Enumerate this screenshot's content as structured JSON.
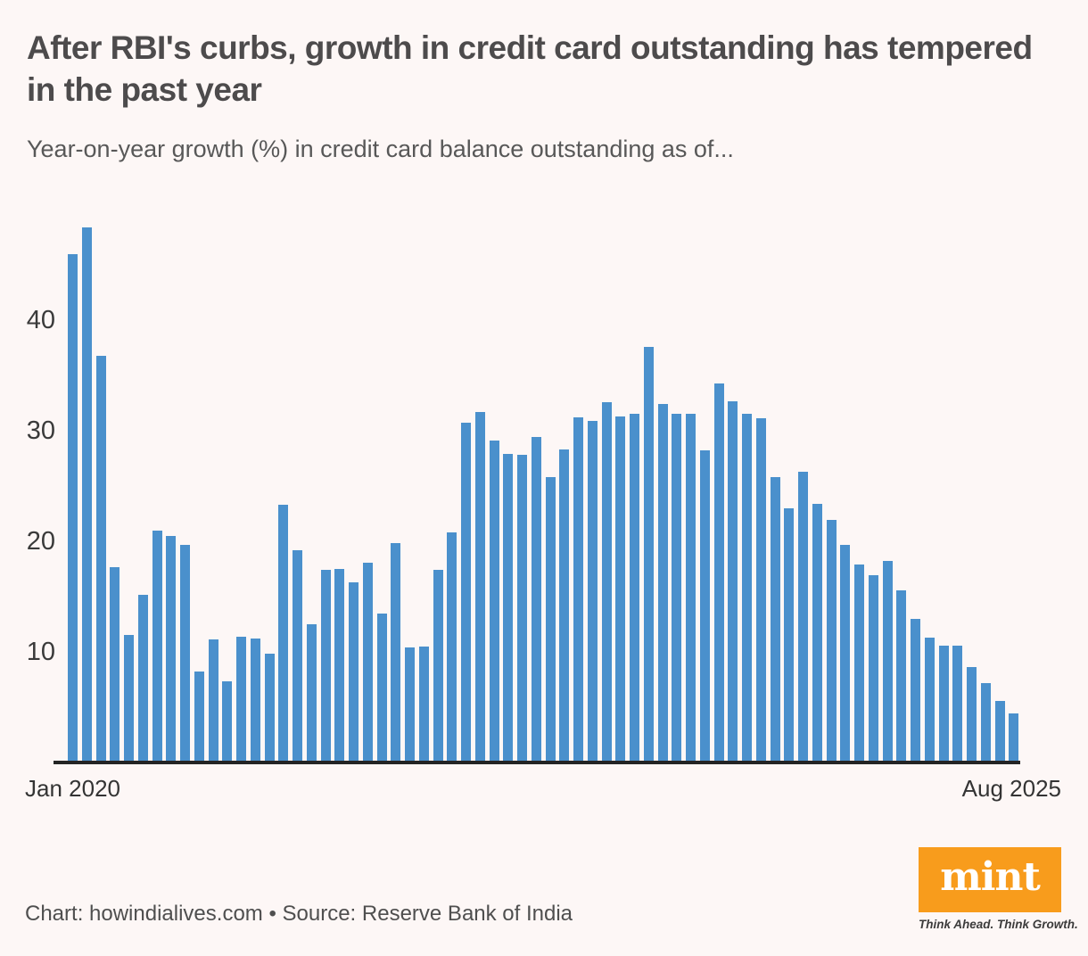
{
  "header": {
    "title": "After RBI's curbs, growth in credit card outstanding has tempered in the past year",
    "subtitle": "Year-on-year growth (%) in credit card balance outstanding as of..."
  },
  "chart_data": {
    "type": "bar",
    "title": "After RBI's curbs, growth in credit card outstanding has tempered in the past year",
    "subtitle": "Year-on-year growth (%) in credit card balance outstanding as of...",
    "unit": "percent, year-on-year growth",
    "x": [
      "Jan 2020",
      "Feb 2020",
      "Mar 2020",
      "Apr 2020",
      "May 2020",
      "Jun 2020",
      "Jul 2020",
      "Aug 2020",
      "Sep 2020",
      "Oct 2020",
      "Nov 2020",
      "Dec 2020",
      "Jan 2021",
      "Feb 2021",
      "Mar 2021",
      "Apr 2021",
      "May 2021",
      "Jun 2021",
      "Jul 2021",
      "Aug 2021",
      "Sep 2021",
      "Oct 2021",
      "Nov 2021",
      "Dec 2021",
      "Jan 2022",
      "Feb 2022",
      "Mar 2022",
      "Apr 2022",
      "May 2022",
      "Jun 2022",
      "Jul 2022",
      "Aug 2022",
      "Sep 2022",
      "Oct 2022",
      "Nov 2022",
      "Dec 2022",
      "Jan 2023",
      "Feb 2023",
      "Mar 2023",
      "Apr 2023",
      "May 2023",
      "Jun 2023",
      "Jul 2023",
      "Aug 2023",
      "Sep 2023",
      "Oct 2023",
      "Nov 2023",
      "Dec 2023",
      "Jan 2024",
      "Feb 2024",
      "Mar 2024",
      "Apr 2024",
      "May 2024",
      "Jun 2024",
      "Jul 2024",
      "Aug 2024",
      "Sep 2024",
      "Oct 2024",
      "Nov 2024",
      "Dec 2024",
      "Jan 2025",
      "Feb 2025",
      "Mar 2025",
      "Apr 2025",
      "May 2025",
      "Jun 2025",
      "Jul 2025",
      "Aug 2025"
    ],
    "values": [
      46.0,
      48.4,
      36.8,
      17.7,
      11.5,
      15.2,
      21.0,
      20.5,
      19.7,
      8.2,
      11.1,
      7.3,
      11.4,
      11.2,
      9.8,
      23.3,
      19.2,
      12.5,
      17.4,
      17.5,
      16.3,
      18.1,
      13.5,
      19.8,
      10.4,
      10.5,
      17.4,
      20.8,
      30.7,
      31.7,
      29.1,
      27.9,
      27.8,
      29.4,
      25.8,
      28.3,
      31.2,
      30.9,
      32.6,
      31.3,
      31.5,
      37.6,
      32.4,
      31.5,
      31.5,
      28.2,
      34.3,
      32.7,
      31.5,
      31.1,
      25.8,
      23.0,
      26.3,
      23.4,
      21.9,
      19.7,
      17.9,
      16.9,
      18.2,
      15.6,
      13.0,
      11.3,
      10.6,
      10.6,
      8.6,
      7.2,
      5.6,
      4.4
    ],
    "y_axis": {
      "ticks": [
        10,
        20,
        30,
        40
      ],
      "range": [
        0,
        50
      ],
      "gridlines": "off"
    },
    "x_axis": {
      "start_label": "Jan 2020",
      "end_label": "Aug 2025"
    },
    "legend": "none",
    "bar_color": "#4a90cc"
  },
  "footer": {
    "credit": "Chart: howindialives.com • Source: Reserve Bank of India"
  },
  "logo": {
    "text": "mint",
    "tagline": "Think Ahead. Think Growth.",
    "box_color": "#f89c1c",
    "text_color": "#ffffff"
  },
  "colors": {
    "background": "#fdf7f6",
    "axis_line": "#242424",
    "title_text": "#4d4b4c",
    "subtitle_text": "#585858",
    "tick_text": "#3a3a3a"
  }
}
